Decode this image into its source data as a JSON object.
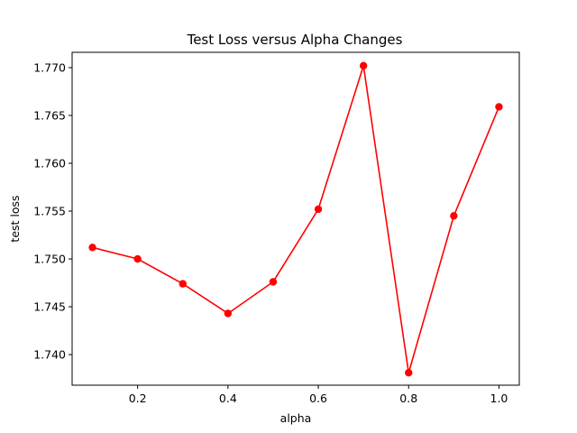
{
  "chart_data": {
    "type": "line",
    "title": "Test Loss versus Alpha Changes",
    "xlabel": "alpha",
    "ylabel": "test loss",
    "xlim": [
      0.055,
      1.045
    ],
    "ylim": [
      1.7368,
      1.7716
    ],
    "x_ticks": [
      0.2,
      0.4,
      0.6,
      0.8,
      1.0
    ],
    "x_tick_labels": [
      "0.2",
      "0.4",
      "0.6",
      "0.8",
      "1.0"
    ],
    "y_ticks": [
      1.74,
      1.745,
      1.75,
      1.755,
      1.76,
      1.765,
      1.77
    ],
    "y_tick_labels": [
      "1.740",
      "1.745",
      "1.750",
      "1.755",
      "1.760",
      "1.765",
      "1.770"
    ],
    "grid": false,
    "series": [
      {
        "color": "#ff0000",
        "marker": "circle",
        "x": [
          0.1,
          0.2,
          0.3,
          0.4,
          0.5,
          0.6,
          0.7,
          0.8,
          0.9,
          1.0
        ],
        "y": [
          1.7512,
          1.75,
          1.7474,
          1.7443,
          1.7476,
          1.7552,
          1.7702,
          1.7381,
          1.7545,
          1.7659
        ]
      }
    ]
  }
}
